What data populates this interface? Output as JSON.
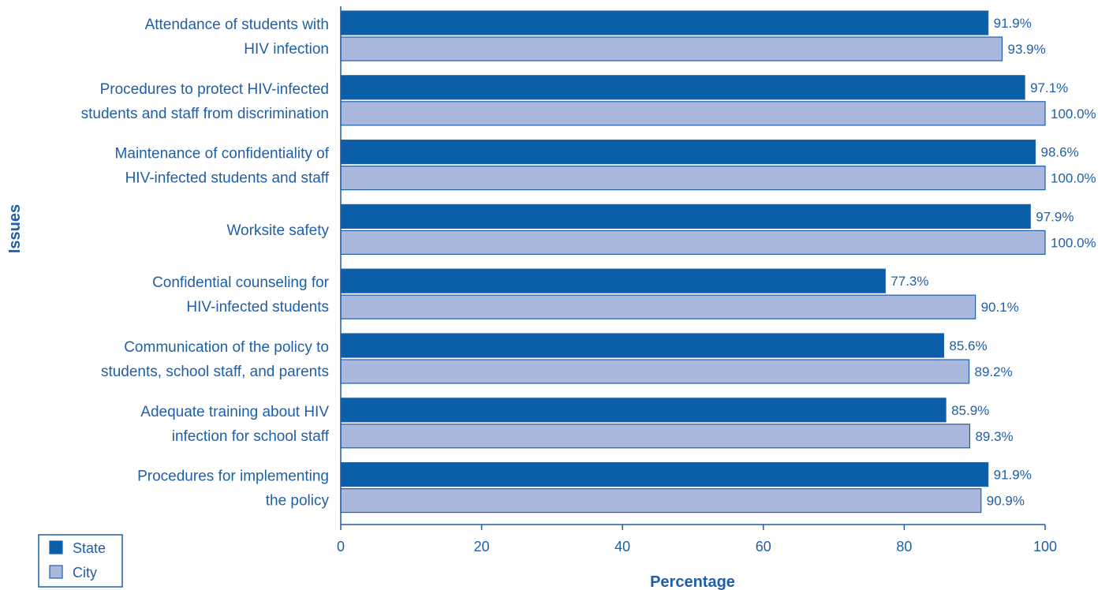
{
  "chart_data": {
    "type": "bar",
    "orientation": "horizontal",
    "categories": [
      [
        "Attendance of students with",
        "HIV infection"
      ],
      [
        "Procedures to protect HIV-infected",
        "students and staff from discrimination"
      ],
      [
        "Maintenance of confidentiality of",
        "HIV-infected students and staff"
      ],
      [
        "Worksite safety"
      ],
      [
        "Confidential counseling for",
        "HIV-infected students"
      ],
      [
        "Communication of the policy to",
        "students, school staff, and parents"
      ],
      [
        "Adequate training about HIV",
        "infection for school staff"
      ],
      [
        "Procedures for implementing",
        "the policy"
      ]
    ],
    "series": [
      {
        "name": "State",
        "color": "#0b5ea8",
        "values": [
          91.9,
          97.1,
          98.6,
          97.9,
          77.3,
          85.6,
          85.9,
          91.9
        ],
        "labels": [
          "91.9%",
          "97.1%",
          "98.6%",
          "97.9%",
          "77.3%",
          "85.6%",
          "85.9%",
          "91.9%"
        ]
      },
      {
        "name": "City",
        "color": "#a9b8dc",
        "values": [
          93.9,
          100.0,
          100.0,
          100.0,
          90.1,
          89.2,
          89.3,
          90.9
        ],
        "labels": [
          "93.9%",
          "100.0%",
          "100.0%",
          "100.0%",
          "90.1%",
          "89.2%",
          "89.3%",
          "90.9%"
        ]
      }
    ],
    "xlabel": "Percentage",
    "ylabel": "Issues",
    "xlim": [
      0,
      100
    ],
    "xticks": [
      0,
      20,
      40,
      60,
      80,
      100
    ],
    "xtick_labels": [
      "0",
      "20",
      "40",
      "60",
      "80",
      "100"
    ],
    "grid": false,
    "legend_position": "bottom-left",
    "text_color": "#1f5fa8",
    "bar_border_color": "#1f5fa8"
  }
}
